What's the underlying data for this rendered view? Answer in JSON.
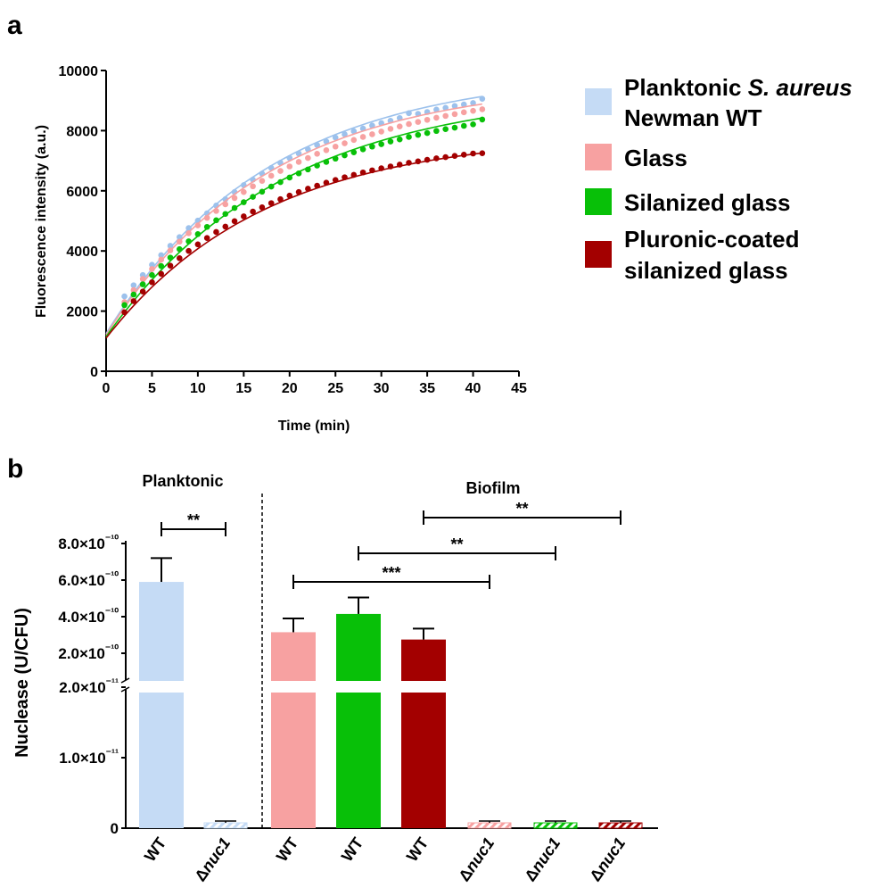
{
  "panel_a_label": "a",
  "panel_b_label": "b",
  "colors": {
    "planktonic": "#c5dbf5",
    "planktonic_line": "#9cc1ec",
    "glass": "#f7a1a1",
    "silanized": "#08c008",
    "pluronic": "#a30000",
    "axis": "#000000"
  },
  "legend": {
    "items": [
      {
        "line1_plain": "Planktonic ",
        "line1_italic": "S. aureus",
        "line2": "Newman WT",
        "color": "#c5dbf5"
      },
      {
        "line1_plain": "Glass",
        "line1_italic": "",
        "line2": "",
        "color": "#f7a1a1"
      },
      {
        "line1_plain": "Silanized glass",
        "line1_italic": "",
        "line2": "",
        "color": "#08c008"
      },
      {
        "line1_plain": "Pluronic-coated",
        "line1_italic": "",
        "line2": "silanized glass",
        "color": "#a30000"
      }
    ]
  },
  "chart_data": [
    {
      "type": "scatter",
      "xlabel": "Time (min)",
      "ylabel": "Fluorescence intensity (a.u.)",
      "xlim": [
        0,
        45
      ],
      "ylim": [
        0,
        10000
      ],
      "xticks": [
        0,
        5,
        10,
        15,
        20,
        25,
        30,
        35,
        40,
        45
      ],
      "yticks": [
        0,
        2000,
        4000,
        6000,
        8000,
        10000
      ],
      "fit": "one-phase association",
      "series": [
        {
          "name": "Planktonic S. aureus Newman WT",
          "color": "#9cc1ec",
          "y0": 1250,
          "plateau": 10000,
          "k": 0.0565,
          "x": [
            2,
            3,
            4,
            5,
            6,
            7,
            8,
            9,
            10,
            11,
            12,
            13,
            14,
            15,
            16,
            17,
            18,
            19,
            20,
            21,
            22,
            23,
            24,
            25,
            26,
            27,
            28,
            29,
            30,
            31,
            32,
            33,
            34,
            35,
            36,
            37,
            38,
            39,
            40,
            41
          ],
          "y": [
            2490,
            2860,
            3200,
            3540,
            3860,
            4170,
            4460,
            4760,
            5010,
            5250,
            5510,
            5720,
            5960,
            6190,
            6370,
            6570,
            6760,
            6930,
            7090,
            7240,
            7380,
            7520,
            7640,
            7770,
            7880,
            7980,
            8070,
            8170,
            8250,
            8330,
            8420,
            8580,
            8560,
            8620,
            8700,
            8760,
            8820,
            8870,
            8920,
            9060
          ]
        },
        {
          "name": "Glass",
          "color": "#f7a1a1",
          "y0": 1200,
          "plateau": 9700,
          "k": 0.0572,
          "x": [
            2,
            3,
            4,
            5,
            6,
            7,
            8,
            9,
            10,
            11,
            12,
            13,
            14,
            15,
            16,
            17,
            18,
            19,
            20,
            21,
            22,
            23,
            24,
            25,
            26,
            27,
            28,
            29,
            30,
            31,
            32,
            33,
            34,
            35,
            36,
            37,
            38,
            39,
            40,
            41
          ],
          "y": [
            2300,
            2700,
            3070,
            3400,
            3710,
            4020,
            4310,
            4590,
            4850,
            5100,
            5330,
            5550,
            5760,
            5960,
            6150,
            6330,
            6500,
            6660,
            6810,
            6960,
            7090,
            7230,
            7350,
            7470,
            7580,
            7690,
            7790,
            7880,
            7970,
            8060,
            8140,
            8220,
            8290,
            8360,
            8430,
            8490,
            8550,
            8610,
            8660,
            8710
          ]
        },
        {
          "name": "Silanized glass",
          "color": "#08c008",
          "y0": 1150,
          "plateau": 9400,
          "k": 0.052,
          "x": [
            2,
            3,
            4,
            5,
            6,
            7,
            8,
            9,
            10,
            11,
            12,
            13,
            14,
            15,
            16,
            17,
            18,
            19,
            20,
            21,
            22,
            23,
            24,
            25,
            26,
            27,
            28,
            29,
            30,
            31,
            32,
            33,
            34,
            35,
            36,
            37,
            38,
            39,
            40,
            41
          ],
          "y": [
            2200,
            2550,
            2890,
            3200,
            3500,
            3780,
            4060,
            4320,
            4560,
            4800,
            5020,
            5230,
            5430,
            5620,
            5800,
            5970,
            6140,
            6290,
            6440,
            6580,
            6710,
            6840,
            6960,
            7070,
            7180,
            7280,
            7380,
            7470,
            7550,
            7640,
            7710,
            7790,
            7860,
            7920,
            7990,
            8050,
            8100,
            8160,
            8210,
            8370
          ]
        },
        {
          "name": "Pluronic-coated silanized glass",
          "color": "#a30000",
          "y0": 1100,
          "plateau": 7900,
          "k": 0.0575,
          "x": [
            2,
            3,
            4,
            5,
            6,
            7,
            8,
            9,
            10,
            11,
            12,
            13,
            14,
            15,
            16,
            17,
            18,
            19,
            20,
            21,
            22,
            23,
            24,
            25,
            26,
            27,
            28,
            29,
            30,
            31,
            32,
            33,
            34,
            35,
            36,
            37,
            38,
            39,
            40,
            41
          ],
          "y": [
            1960,
            2330,
            2650,
            2960,
            3240,
            3510,
            3760,
            4000,
            4220,
            4430,
            4630,
            4810,
            4990,
            5150,
            5310,
            5450,
            5590,
            5720,
            5840,
            5960,
            6070,
            6170,
            6270,
            6360,
            6450,
            6530,
            6610,
            6680,
            6750,
            6810,
            6870,
            6930,
            6980,
            7030,
            7080,
            7120,
            7160,
            7200,
            7240,
            7250
          ]
        }
      ]
    },
    {
      "type": "bar",
      "ylabel": "Nuclease (U/CFU)",
      "group_labels": [
        "Planktonic",
        "Biofilm"
      ],
      "categories": [
        "WT",
        "Δnuc1",
        "WT",
        "WT",
        "WT",
        "Δnuc1",
        "Δnuc1",
        "Δnuc1"
      ],
      "colors": [
        "#c5dbf5",
        "#c5dbf5",
        "#f7a1a1",
        "#08c008",
        "#a30000",
        "#f7a1a1",
        "#08c008",
        "#a30000"
      ],
      "hatched": [
        false,
        true,
        false,
        false,
        false,
        true,
        true,
        true
      ],
      "values": [
        5.9e-10,
        5e-13,
        3.15e-10,
        4.15e-10,
        2.75e-10,
        5e-13,
        5e-13,
        5e-13
      ],
      "errors": [
        1.3e-10,
        1e-13,
        7.5e-11,
        9e-11,
        6e-11,
        1e-13,
        1e-13,
        1e-13
      ],
      "axis_break": true,
      "lower_segment": {
        "ylim": [
          0,
          2e-11
        ],
        "ticks": [
          "0",
          "1.0×10⁻¹¹",
          "2.0×10⁻¹¹"
        ],
        "values": [
          0,
          1e-11,
          2e-11
        ]
      },
      "upper_segment": {
        "ylim": [
          0,
          8e-10
        ],
        "ticks": [
          "2.0×10⁻¹⁰",
          "4.0×10⁻¹⁰",
          "6.0×10⁻¹⁰",
          "8.0×10⁻¹⁰"
        ],
        "values": [
          2e-10,
          4e-10,
          6e-10,
          8e-10
        ]
      },
      "significance": [
        {
          "from": 0,
          "to": 1,
          "label": "**"
        },
        {
          "from": 2,
          "to": 5,
          "label": "***"
        },
        {
          "from": 3,
          "to": 6,
          "label": "**"
        },
        {
          "from": 4,
          "to": 7,
          "label": "**"
        }
      ]
    }
  ]
}
